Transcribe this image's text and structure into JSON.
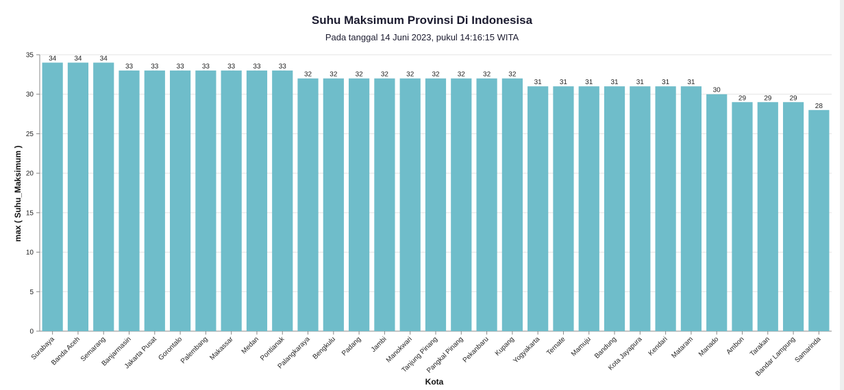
{
  "chart_data": {
    "type": "bar",
    "title": "Suhu Maksimum Provinsi Di Indonesisa",
    "subtitle": "Pada tanggal 14 Juni 2023, pukul 14:16:15 WITA",
    "xlabel": "Kota",
    "ylabel": "max ( Suhu_Maksimum )",
    "ylim": [
      0,
      35
    ],
    "yticks": [
      0,
      5,
      10,
      15,
      20,
      25,
      30,
      35
    ],
    "grid": true,
    "bar_color": "#6fbdca",
    "categories": [
      "Surabaya",
      "Banda Aceh",
      "Semarang",
      "Banjarmasin",
      "Jakarta Pusat",
      "Gorontalo",
      "Palembang",
      "Makassar",
      "Medan",
      "Pontianak",
      "Palangkaraya",
      "Bengkulu",
      "Padang",
      "Jambi",
      "Manokwari",
      "Tanjung Pinang",
      "Pangkal Pinang",
      "Pekanbaru",
      "Kupang",
      "Yogyakarta",
      "Ternate",
      "Mamuju",
      "Bandung",
      "Kota Jayapura",
      "Kendari",
      "Mataram",
      "Manado",
      "Ambon",
      "Tarakan",
      "Bandar Lampung",
      "Samarinda"
    ],
    "values": [
      34,
      34,
      34,
      33,
      33,
      33,
      33,
      33,
      33,
      33,
      32,
      32,
      32,
      32,
      32,
      32,
      32,
      32,
      32,
      31,
      31,
      31,
      31,
      31,
      31,
      31,
      30,
      29,
      29,
      29,
      28
    ]
  }
}
